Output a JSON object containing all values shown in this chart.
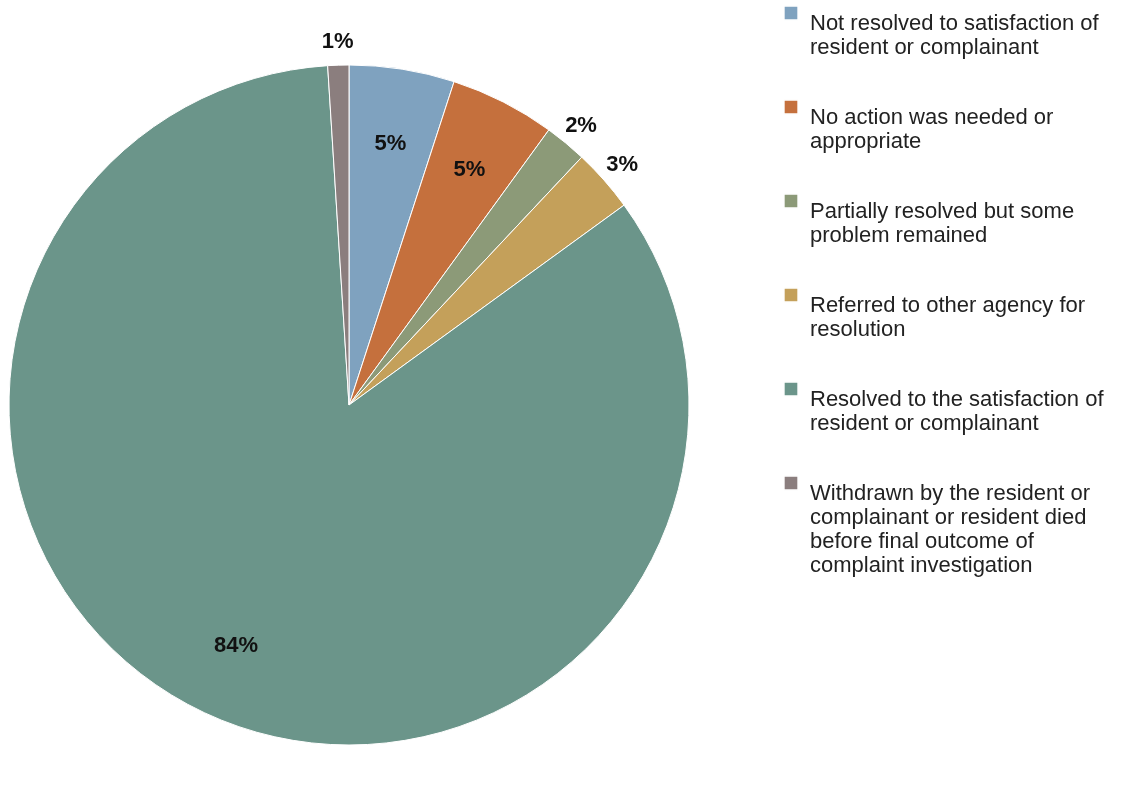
{
  "chart_data": {
    "type": "pie",
    "categories": [
      "Not resolved to satisfaction of resident or complainant",
      "No action was needed or appropriate",
      "Partially resolved but some problem remained",
      "Referred to other agency for resolution",
      "Resolved to the satisfaction of resident or complainant",
      "Withdrawn by the resident or complainant or resident died before final outcome of complaint investigation"
    ],
    "values": [
      5,
      5,
      2,
      3,
      84,
      1
    ],
    "colors": [
      "#7fa2bf",
      "#c5703d",
      "#8c9a78",
      "#c4a05a",
      "#6b958a",
      "#8b7e7e"
    ],
    "value_labels": [
      "5%",
      "5%",
      "2%",
      "3%",
      "84%",
      "1%"
    ],
    "legend": "right"
  }
}
